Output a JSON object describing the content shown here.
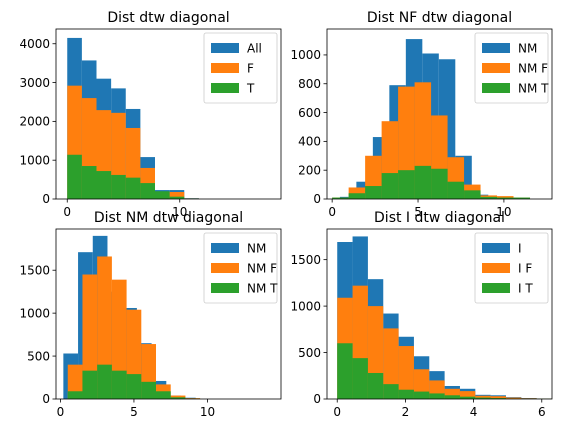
{
  "colors": {
    "blue": "#1f77b4",
    "orange": "#ff7f0e",
    "green": "#2ca02c"
  },
  "chart_data": [
    {
      "type": "bar",
      "title": "Dist dtw diagonal",
      "xlim": [
        -1,
        19
      ],
      "ylim": [
        0,
        4380
      ],
      "xticks": [
        0,
        10
      ],
      "yticks": [
        0,
        1000,
        2000,
        3000,
        4000
      ],
      "legend_position": "top-right",
      "bin_width": 1.3,
      "series": [
        {
          "name": "All",
          "color": "#1f77b4",
          "bins": [
            {
              "x": 0.0,
              "value": 4150
            },
            {
              "x": 1.3,
              "value": 3570
            },
            {
              "x": 2.6,
              "value": 3100
            },
            {
              "x": 3.9,
              "value": 2850
            },
            {
              "x": 5.2,
              "value": 2320
            },
            {
              "x": 6.5,
              "value": 1080
            },
            {
              "x": 7.8,
              "value": 230
            },
            {
              "x": 9.1,
              "value": 230
            },
            {
              "x": 10.4,
              "value": 20
            }
          ]
        },
        {
          "name": "F",
          "color": "#ff7f0e",
          "bins": [
            {
              "x": 0.0,
              "value": 2920
            },
            {
              "x": 1.3,
              "value": 2600
            },
            {
              "x": 2.6,
              "value": 2290
            },
            {
              "x": 3.9,
              "value": 2220
            },
            {
              "x": 5.2,
              "value": 1830
            },
            {
              "x": 6.5,
              "value": 800
            },
            {
              "x": 7.8,
              "value": 170
            },
            {
              "x": 9.1,
              "value": 180
            },
            {
              "x": 10.4,
              "value": 15
            }
          ]
        },
        {
          "name": "T",
          "color": "#2ca02c",
          "bins": [
            {
              "x": 0.0,
              "value": 1140
            },
            {
              "x": 1.3,
              "value": 850
            },
            {
              "x": 2.6,
              "value": 720
            },
            {
              "x": 3.9,
              "value": 620
            },
            {
              "x": 5.2,
              "value": 550
            },
            {
              "x": 6.5,
              "value": 410
            },
            {
              "x": 7.8,
              "value": 200
            },
            {
              "x": 9.1,
              "value": 60
            },
            {
              "x": 10.4,
              "value": 10
            }
          ]
        }
      ]
    },
    {
      "type": "bar",
      "title": "Dist NF dtw diagonal",
      "xlim": [
        -0.3,
        12.8
      ],
      "ylim": [
        0,
        1180
      ],
      "xticks": [
        0,
        5,
        10
      ],
      "yticks": [
        0,
        200,
        400,
        600,
        800,
        1000
      ],
      "legend_position": "top-right",
      "bin_width": 0.96,
      "series": [
        {
          "name": "NM",
          "color": "#1f77b4",
          "bins": [
            {
              "x": 0.45,
              "value": 15
            },
            {
              "x": 1.41,
              "value": 120
            },
            {
              "x": 2.37,
              "value": 430
            },
            {
              "x": 3.33,
              "value": 790
            },
            {
              "x": 4.29,
              "value": 1110
            },
            {
              "x": 5.25,
              "value": 1010
            },
            {
              "x": 6.21,
              "value": 970
            },
            {
              "x": 7.17,
              "value": 300
            },
            {
              "x": 8.13,
              "value": 30
            },
            {
              "x": 9.09,
              "value": 10
            },
            {
              "x": 10.05,
              "value": 5
            }
          ]
        },
        {
          "name": "NM F",
          "color": "#ff7f0e",
          "bins": [
            {
              "x": 0.0,
              "value": 10
            },
            {
              "x": 0.96,
              "value": 80
            },
            {
              "x": 1.92,
              "value": 300
            },
            {
              "x": 2.88,
              "value": 540
            },
            {
              "x": 3.84,
              "value": 780
            },
            {
              "x": 4.8,
              "value": 810
            },
            {
              "x": 5.76,
              "value": 580
            },
            {
              "x": 6.72,
              "value": 290
            },
            {
              "x": 7.68,
              "value": 100
            },
            {
              "x": 8.64,
              "value": 25
            },
            {
              "x": 9.6,
              "value": 20
            },
            {
              "x": 10.56,
              "value": 10
            }
          ]
        },
        {
          "name": "NM T",
          "color": "#2ca02c",
          "bins": [
            {
              "x": 0.0,
              "value": 10
            },
            {
              "x": 0.96,
              "value": 40
            },
            {
              "x": 1.92,
              "value": 90
            },
            {
              "x": 2.88,
              "value": 180
            },
            {
              "x": 3.84,
              "value": 200
            },
            {
              "x": 4.8,
              "value": 230
            },
            {
              "x": 5.76,
              "value": 210
            },
            {
              "x": 6.72,
              "value": 120
            },
            {
              "x": 7.68,
              "value": 60
            },
            {
              "x": 8.64,
              "value": 15
            },
            {
              "x": 9.6,
              "value": 10
            },
            {
              "x": 10.56,
              "value": 10
            }
          ]
        }
      ]
    },
    {
      "type": "bar",
      "title": "Dist NM dtw diagonal",
      "xlim": [
        -0.3,
        15.0
      ],
      "ylim": [
        0,
        1980
      ],
      "xticks": [
        0,
        5,
        10
      ],
      "yticks": [
        0,
        500,
        1000,
        1500
      ],
      "legend_position": "top-right",
      "bin_width": 1.0,
      "series": [
        {
          "name": "NM",
          "color": "#1f77b4",
          "bins": [
            {
              "x": 0.2,
              "value": 530
            },
            {
              "x": 1.2,
              "value": 1710
            },
            {
              "x": 2.2,
              "value": 1900
            },
            {
              "x": 3.2,
              "value": 1250
            },
            {
              "x": 4.2,
              "value": 1060
            },
            {
              "x": 5.2,
              "value": 650
            },
            {
              "x": 6.2,
              "value": 210
            },
            {
              "x": 7.2,
              "value": 40
            },
            {
              "x": 8.2,
              "value": 15
            }
          ]
        },
        {
          "name": "NM F",
          "color": "#ff7f0e",
          "bins": [
            {
              "x": 0.5,
              "value": 400
            },
            {
              "x": 1.5,
              "value": 1450
            },
            {
              "x": 2.5,
              "value": 1660
            },
            {
              "x": 3.5,
              "value": 1390
            },
            {
              "x": 4.5,
              "value": 1040
            },
            {
              "x": 5.5,
              "value": 640
            },
            {
              "x": 6.5,
              "value": 170
            },
            {
              "x": 7.5,
              "value": 40
            },
            {
              "x": 8.5,
              "value": 10
            }
          ]
        },
        {
          "name": "NM T",
          "color": "#2ca02c",
          "bins": [
            {
              "x": 0.5,
              "value": 90
            },
            {
              "x": 1.5,
              "value": 330
            },
            {
              "x": 2.5,
              "value": 400
            },
            {
              "x": 3.5,
              "value": 330
            },
            {
              "x": 4.5,
              "value": 290
            },
            {
              "x": 5.5,
              "value": 200
            },
            {
              "x": 6.5,
              "value": 90
            },
            {
              "x": 7.5,
              "value": 20
            },
            {
              "x": 8.5,
              "value": 5
            }
          ]
        }
      ]
    },
    {
      "type": "bar",
      "title": "Dist I dtw diagonal",
      "xlim": [
        -0.3,
        6.3
      ],
      "ylim": [
        0,
        1830
      ],
      "xticks": [
        0,
        2,
        4,
        6
      ],
      "yticks": [
        0,
        500,
        1000,
        1500
      ],
      "legend_position": "top-right",
      "bin_width": 0.45,
      "series": [
        {
          "name": "I",
          "color": "#1f77b4",
          "bins": [
            {
              "x": 0.0,
              "value": 1690
            },
            {
              "x": 0.45,
              "value": 1750
            },
            {
              "x": 0.9,
              "value": 1290
            },
            {
              "x": 1.35,
              "value": 920
            },
            {
              "x": 1.8,
              "value": 670
            },
            {
              "x": 2.25,
              "value": 460
            },
            {
              "x": 2.7,
              "value": 300
            },
            {
              "x": 3.15,
              "value": 140
            },
            {
              "x": 3.6,
              "value": 110
            },
            {
              "x": 4.05,
              "value": 45
            },
            {
              "x": 4.5,
              "value": 40
            },
            {
              "x": 4.95,
              "value": 20
            },
            {
              "x": 5.4,
              "value": 10
            },
            {
              "x": 5.85,
              "value": 5
            }
          ]
        },
        {
          "name": "I F",
          "color": "#ff7f0e",
          "bins": [
            {
              "x": 0.0,
              "value": 1090
            },
            {
              "x": 0.45,
              "value": 1220
            },
            {
              "x": 0.9,
              "value": 1000
            },
            {
              "x": 1.35,
              "value": 760
            },
            {
              "x": 1.8,
              "value": 570
            },
            {
              "x": 2.25,
              "value": 320
            },
            {
              "x": 2.7,
              "value": 200
            },
            {
              "x": 3.15,
              "value": 110
            },
            {
              "x": 3.6,
              "value": 85
            },
            {
              "x": 4.05,
              "value": 35
            },
            {
              "x": 4.5,
              "value": 30
            },
            {
              "x": 4.95,
              "value": 15
            },
            {
              "x": 5.4,
              "value": 8
            },
            {
              "x": 5.85,
              "value": 3
            }
          ]
        },
        {
          "name": "I T",
          "color": "#2ca02c",
          "bins": [
            {
              "x": 0.0,
              "value": 600
            },
            {
              "x": 0.45,
              "value": 440
            },
            {
              "x": 0.9,
              "value": 280
            },
            {
              "x": 1.35,
              "value": 160
            },
            {
              "x": 1.8,
              "value": 100
            },
            {
              "x": 2.25,
              "value": 80
            },
            {
              "x": 2.7,
              "value": 60
            },
            {
              "x": 3.15,
              "value": 40
            },
            {
              "x": 3.6,
              "value": 25
            },
            {
              "x": 4.05,
              "value": 15
            },
            {
              "x": 4.5,
              "value": 10
            },
            {
              "x": 4.95,
              "value": 5
            },
            {
              "x": 5.4,
              "value": 3
            },
            {
              "x": 5.85,
              "value": 2
            }
          ]
        }
      ]
    }
  ]
}
